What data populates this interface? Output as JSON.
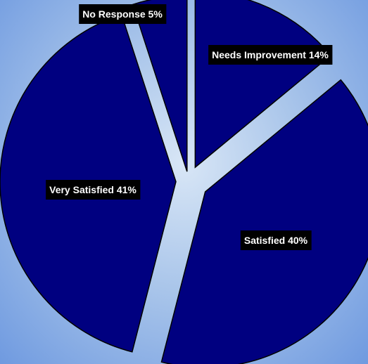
{
  "chart_data": {
    "type": "pie",
    "exploded": true,
    "slices": [
      {
        "label": "Needs Improvement",
        "value": 14,
        "display": "Needs Improvement 14%"
      },
      {
        "label": "Satisfied",
        "value": 40,
        "display": "Satisfied 40%"
      },
      {
        "label": "Very Satisfied",
        "value": 41,
        "display": "Very Satisfied 41%"
      },
      {
        "label": "No Response",
        "value": 5,
        "display": "No Response 5%"
      }
    ],
    "colors": {
      "slice": "#000080",
      "label_background": "#000000",
      "label_text": "#ffffff"
    }
  }
}
